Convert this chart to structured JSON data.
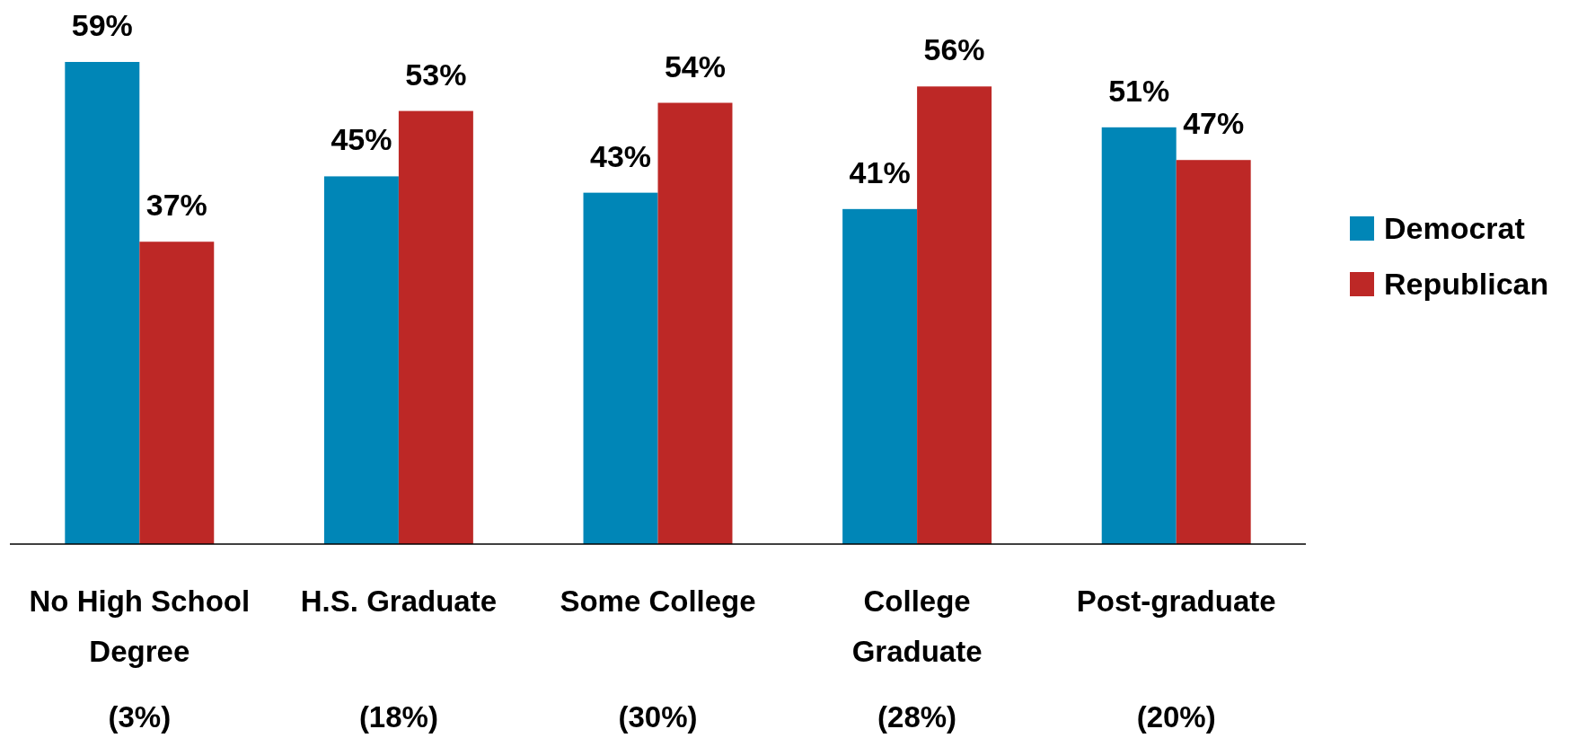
{
  "chart_data": {
    "type": "bar",
    "categories": [
      "No High School Degree",
      "H.S. Graduate",
      "Some College",
      "College Graduate",
      "Post-graduate"
    ],
    "series": [
      {
        "name": "Democrat",
        "color": "#0086b7",
        "values": [
          59,
          45,
          43,
          41,
          51
        ],
        "value_labels": [
          "59%",
          "45%",
          "43%",
          "41%",
          "51%"
        ]
      },
      {
        "name": "Republican",
        "color": "#bd2826",
        "values": [
          37,
          53,
          54,
          56,
          47
        ],
        "value_labels": [
          "37%",
          "53%",
          "54%",
          "56%",
          "47%"
        ]
      }
    ],
    "legend": "right",
    "tick_labels": "x",
    "annotations": [
      "(3%)",
      "(18%)",
      "(30%)",
      "(28%)",
      "(20%)"
    ]
  }
}
